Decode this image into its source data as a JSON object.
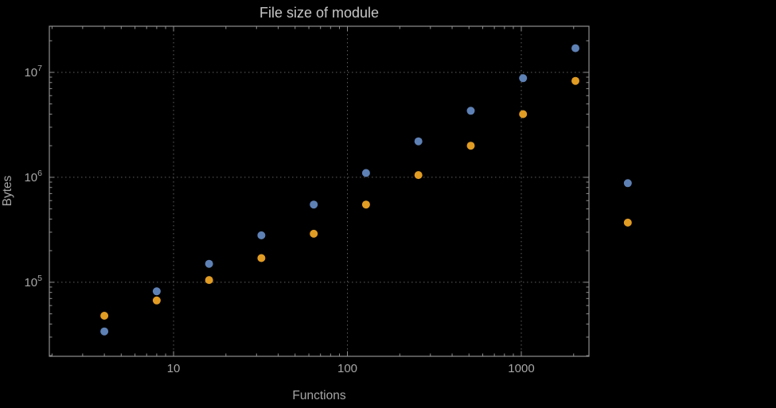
{
  "colors": {
    "background": "#000000",
    "frame": "#8f8f8f",
    "grid": "#5e5e5e",
    "text": "#a6a6a6",
    "title": "#c6c6c6",
    "series_blue": "#5e81b5",
    "series_orange": "#e19c24"
  },
  "chart_data": {
    "type": "scatter",
    "title": "File size of module",
    "xlabel": "Functions",
    "ylabel": "Bytes",
    "x_scale": "log",
    "y_scale": "log",
    "grid": "dotted",
    "legend": "none",
    "x_ticks": [
      10,
      100,
      1000
    ],
    "x_tick_labels": [
      "10",
      "100",
      "1000"
    ],
    "y_ticks": [
      100000,
      1000000,
      10000000
    ],
    "y_tick_labels": [
      {
        "base": "10",
        "exp": "5"
      },
      {
        "base": "10",
        "exp": "6"
      },
      {
        "base": "10",
        "exp": "7"
      }
    ],
    "x_range": [
      1.93,
      2450
    ],
    "y_range": [
      19700,
      27500000
    ],
    "x": [
      4,
      8,
      16,
      32,
      64,
      128,
      256,
      512,
      1024,
      2048,
      4096
    ],
    "series": [
      {
        "name": "blue",
        "color": "#5e81b5",
        "values": [
          34000,
          82000,
          150000,
          280000,
          550000,
          1100000,
          2200000,
          4300000,
          8800000,
          17000000,
          880000
        ]
      },
      {
        "name": "orange",
        "color": "#e19c24",
        "values": [
          48000,
          67000,
          105000,
          170000,
          290000,
          550000,
          1050000,
          2000000,
          4000000,
          8300000,
          370000
        ]
      }
    ]
  }
}
